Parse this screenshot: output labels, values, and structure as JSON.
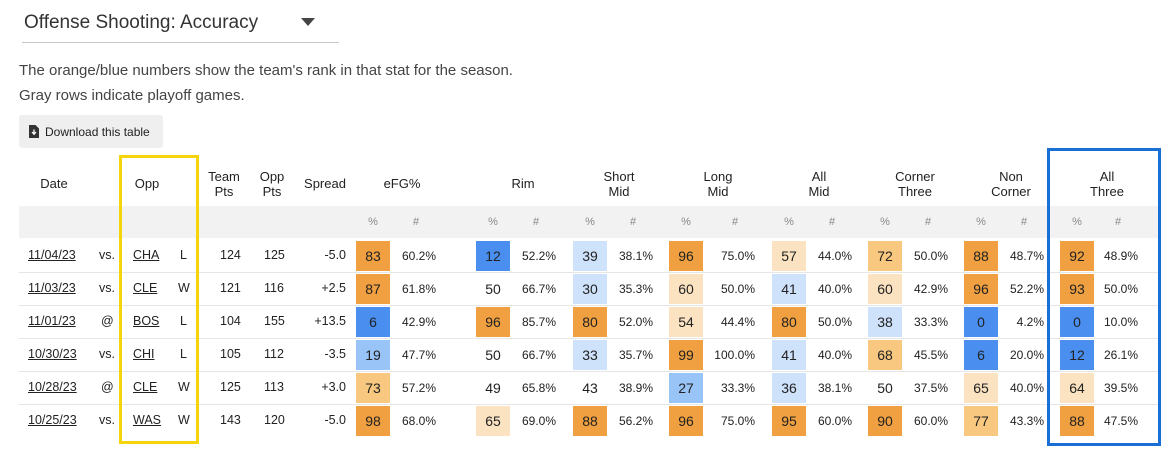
{
  "header": {
    "title": "Offense Shooting: Accuracy",
    "desc_line1": "The orange/blue numbers show the team's rank in that stat for the season.",
    "desc_line2": "Gray rows indicate playoff games.",
    "download_label": "Download this table"
  },
  "columns": {
    "date": "Date",
    "opp": "Opp",
    "team_pts": [
      "Team",
      "Pts"
    ],
    "opp_pts": [
      "Opp",
      "Pts"
    ],
    "spread": "Spread",
    "efg": "eFG%",
    "rim": "Rim",
    "short_mid": [
      "Short",
      "Mid"
    ],
    "long_mid": [
      "Long",
      "Mid"
    ],
    "all_mid": [
      "All",
      "Mid"
    ],
    "corner_three": [
      "Corner",
      "Three"
    ],
    "non_corner": [
      "Non",
      "Corner"
    ],
    "all_three": [
      "All",
      "Three"
    ],
    "sub_rank": "%",
    "sub_value": "#"
  },
  "rows": [
    {
      "date": "11/04/23",
      "loc": "vs.",
      "opp": "CHA",
      "result": "L",
      "team_pts": "124",
      "opp_pts": "125",
      "spread": "-5.0",
      "stats": [
        [
          "83",
          "60.2%"
        ],
        [
          "12",
          "52.2%"
        ],
        [
          "39",
          "38.1%"
        ],
        [
          "96",
          "75.0%"
        ],
        [
          "57",
          "44.0%"
        ],
        [
          "72",
          "50.0%"
        ],
        [
          "88",
          "48.7%"
        ],
        [
          "92",
          "48.9%"
        ]
      ]
    },
    {
      "date": "11/03/23",
      "loc": "vs.",
      "opp": "CLE",
      "result": "W",
      "team_pts": "121",
      "opp_pts": "116",
      "spread": "+2.5",
      "stats": [
        [
          "87",
          "61.8%"
        ],
        [
          "50",
          "66.7%"
        ],
        [
          "30",
          "35.3%"
        ],
        [
          "60",
          "50.0%"
        ],
        [
          "41",
          "40.0%"
        ],
        [
          "60",
          "42.9%"
        ],
        [
          "96",
          "52.2%"
        ],
        [
          "93",
          "50.0%"
        ]
      ]
    },
    {
      "date": "11/01/23",
      "loc": "@",
      "opp": "BOS",
      "result": "L",
      "team_pts": "104",
      "opp_pts": "155",
      "spread": "+13.5",
      "stats": [
        [
          "6",
          "42.9%"
        ],
        [
          "96",
          "85.7%"
        ],
        [
          "80",
          "52.0%"
        ],
        [
          "54",
          "44.4%"
        ],
        [
          "80",
          "50.0%"
        ],
        [
          "38",
          "33.3%"
        ],
        [
          "0",
          "4.2%"
        ],
        [
          "0",
          "10.0%"
        ]
      ]
    },
    {
      "date": "10/30/23",
      "loc": "vs.",
      "opp": "CHI",
      "result": "L",
      "team_pts": "105",
      "opp_pts": "112",
      "spread": "-3.5",
      "stats": [
        [
          "19",
          "47.7%"
        ],
        [
          "50",
          "66.7%"
        ],
        [
          "33",
          "35.7%"
        ],
        [
          "99",
          "100.0%"
        ],
        [
          "41",
          "40.0%"
        ],
        [
          "68",
          "45.5%"
        ],
        [
          "6",
          "20.0%"
        ],
        [
          "12",
          "26.1%"
        ]
      ]
    },
    {
      "date": "10/28/23",
      "loc": "@",
      "opp": "CLE",
      "result": "W",
      "team_pts": "125",
      "opp_pts": "113",
      "spread": "+3.0",
      "stats": [
        [
          "73",
          "57.2%"
        ],
        [
          "49",
          "65.8%"
        ],
        [
          "43",
          "38.9%"
        ],
        [
          "27",
          "33.3%"
        ],
        [
          "36",
          "38.1%"
        ],
        [
          "50",
          "37.5%"
        ],
        [
          "65",
          "40.0%"
        ],
        [
          "64",
          "39.5%"
        ]
      ]
    },
    {
      "date": "10/25/23",
      "loc": "vs.",
      "opp": "WAS",
      "result": "W",
      "team_pts": "143",
      "opp_pts": "120",
      "spread": "-5.0",
      "stats": [
        [
          "98",
          "68.0%"
        ],
        [
          "65",
          "69.0%"
        ],
        [
          "88",
          "56.2%"
        ],
        [
          "96",
          "75.0%"
        ],
        [
          "95",
          "60.0%"
        ],
        [
          "90",
          "60.0%"
        ],
        [
          "77",
          "43.3%"
        ],
        [
          "88",
          "47.5%"
        ]
      ]
    }
  ],
  "rank_colors": {
    "very_high": "#f0a040",
    "high": "#f8c880",
    "mid_high": "#fbe3c2",
    "neutral": "#ffffff",
    "mid_low": "#cfe2fb",
    "low": "#98c4f8",
    "very_low": "#4a8ff0"
  },
  "highlight_colors": {
    "opp_column": "#f5d40a",
    "all_three_column": "#1a6fd6"
  }
}
